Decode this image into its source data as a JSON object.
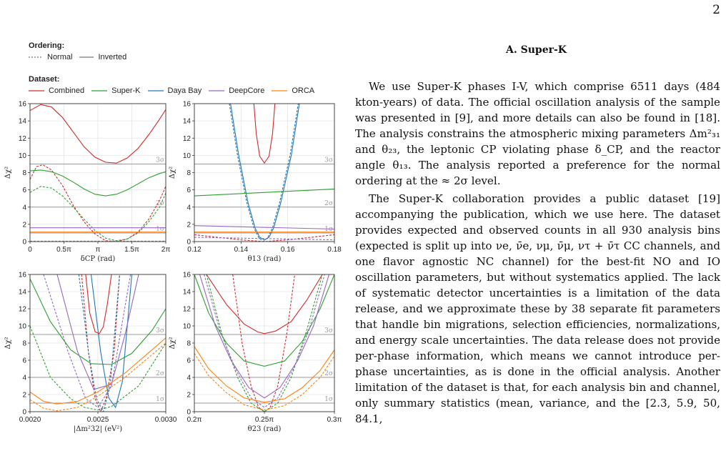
{
  "page_number": "2",
  "legend": {
    "ordering_header": "Ordering:",
    "ordering_items": [
      "Normal",
      "Inverted"
    ],
    "dataset_header": "Dataset:",
    "dataset_items": [
      {
        "name": "Combined",
        "color": "#d62728"
      },
      {
        "name": "Super-K",
        "color": "#2ca02c"
      },
      {
        "name": "Daya Bay",
        "color": "#1f77b4"
      },
      {
        "name": "DeepCore",
        "color": "#9467bd"
      },
      {
        "name": "ORCA",
        "color": "#ff7f0e"
      }
    ]
  },
  "chart_data": [
    {
      "type": "line",
      "xlabel": "δCP (rad)",
      "ylabel": "Δχ²",
      "xticks": [
        "0",
        "0.5π",
        "π",
        "1.5π",
        "2π"
      ],
      "xlim": [
        0,
        6.283
      ],
      "ylim": [
        0,
        16
      ],
      "yticks": [
        "0",
        "2",
        "4",
        "6",
        "8",
        "10",
        "12",
        "14",
        "16"
      ],
      "sigma_lines": [
        {
          "label": "1σ",
          "y": 1
        },
        {
          "label": "2σ",
          "y": 4
        },
        {
          "label": "3σ",
          "y": 9
        }
      ],
      "grid": true,
      "series": [
        {
          "name": "Combined",
          "ordering": "Inverted",
          "x": [
            0,
            0.5,
            1,
            1.5,
            2,
            2.5,
            3,
            3.5,
            4,
            4.5,
            5,
            5.5,
            6,
            6.28
          ],
          "y": [
            15.2,
            15.9,
            15.6,
            14.4,
            12.7,
            11,
            9.8,
            9.2,
            9.1,
            9.7,
            10.8,
            12.4,
            14.2,
            15.3
          ]
        },
        {
          "name": "Combined",
          "ordering": "Normal",
          "x": [
            0,
            0.3,
            0.6,
            1,
            1.5,
            2,
            2.5,
            3,
            3.5,
            4,
            4.5,
            5,
            5.5,
            6,
            6.28
          ],
          "y": [
            7.2,
            8.7,
            8.9,
            8.3,
            6.5,
            4.2,
            2.3,
            0.9,
            0.1,
            0,
            0.3,
            1.1,
            2.6,
            4.8,
            6.4
          ]
        },
        {
          "name": "Super-K",
          "ordering": "Inverted",
          "x": [
            0,
            0.5,
            1,
            1.5,
            2,
            2.5,
            3,
            3.5,
            4,
            4.5,
            5,
            5.5,
            6,
            6.28
          ],
          "y": [
            8.2,
            8.3,
            8.1,
            7.6,
            6.9,
            6.1,
            5.5,
            5.3,
            5.5,
            6.0,
            6.7,
            7.4,
            7.9,
            8.1
          ]
        },
        {
          "name": "Super-K",
          "ordering": "Normal",
          "x": [
            0,
            0.5,
            1,
            1.5,
            2,
            2.5,
            3,
            3.5,
            4,
            4.5,
            5,
            5.5,
            6,
            6.28
          ],
          "y": [
            5.7,
            6.4,
            6.2,
            5.3,
            4.0,
            2.6,
            1.3,
            0.4,
            0.1,
            0.3,
            1.0,
            2.3,
            4.0,
            5.6
          ]
        },
        {
          "name": "DeepCore",
          "ordering": "Inverted",
          "x": [
            0,
            6.28
          ],
          "y": [
            1.6,
            1.6
          ]
        },
        {
          "name": "DeepCore",
          "ordering": "Normal",
          "x": [
            0,
            6.28
          ],
          "y": [
            0.05,
            0.05
          ]
        },
        {
          "name": "ORCA",
          "ordering": "Inverted",
          "x": [
            0,
            6.28
          ],
          "y": [
            1.1,
            1.1
          ]
        },
        {
          "name": "ORCA",
          "ordering": "Normal",
          "x": [
            0,
            6.28
          ],
          "y": [
            0.02,
            0.02
          ]
        }
      ]
    },
    {
      "type": "line",
      "xlabel": "θ13 (rad)",
      "ylabel": "Δχ²",
      "xticks": [
        "0.12",
        "0.14",
        "0.16",
        "0.18"
      ],
      "xlim": [
        0.12,
        0.18
      ],
      "ylim": [
        0,
        16
      ],
      "yticks": [
        "0",
        "2",
        "4",
        "6",
        "8",
        "10",
        "12",
        "14",
        "16"
      ],
      "sigma_lines": [
        {
          "label": "1σ",
          "y": 1
        },
        {
          "label": "2σ",
          "y": 4
        },
        {
          "label": "3σ",
          "y": 9
        }
      ],
      "grid": true,
      "series": [
        {
          "name": "Combined",
          "ordering": "Inverted",
          "x": [
            0.1455,
            0.1465,
            0.148,
            0.15,
            0.152,
            0.1535,
            0.1545
          ],
          "y": [
            16,
            12.5,
            9.9,
            9.1,
            9.9,
            12.5,
            16
          ]
        },
        {
          "name": "Combined",
          "ordering": "Normal",
          "x": [
            0.12,
            0.14,
            0.15,
            0.16,
            0.18
          ],
          "y": [
            0.8,
            0.2,
            0,
            0.2,
            0.8
          ]
        },
        {
          "name": "Daya Bay",
          "ordering": "Inverted",
          "x": [
            0.1355,
            0.139,
            0.143,
            0.146,
            0.148,
            0.15,
            0.152,
            0.154,
            0.157,
            0.1615,
            0.165
          ],
          "y": [
            16,
            10,
            4.5,
            1.6,
            0.5,
            0.2,
            0.5,
            1.6,
            4.5,
            10,
            16
          ]
        },
        {
          "name": "Daya Bay",
          "ordering": "Normal",
          "x": [
            0.135,
            0.1385,
            0.1425,
            0.1455,
            0.1475,
            0.1495,
            0.1515,
            0.1535,
            0.1565,
            0.161,
            0.1645
          ],
          "y": [
            16,
            10,
            4.5,
            1.6,
            0.5,
            0,
            0.5,
            1.6,
            4.5,
            10,
            16
          ]
        },
        {
          "name": "Super-K",
          "ordering": "Inverted",
          "x": [
            0.12,
            0.18
          ],
          "y": [
            5.3,
            6.1
          ]
        },
        {
          "name": "DeepCore",
          "ordering": "Inverted",
          "x": [
            0.12,
            0.18
          ],
          "y": [
            1.85,
            1.45
          ]
        },
        {
          "name": "DeepCore",
          "ordering": "Normal",
          "x": [
            0.12,
            0.18
          ],
          "y": [
            0.5,
            0.2
          ]
        },
        {
          "name": "ORCA",
          "ordering": "Inverted",
          "x": [
            0.12,
            0.18
          ],
          "y": [
            1.1,
            1.1
          ]
        }
      ]
    },
    {
      "type": "line",
      "xlabel": "|Δm²32| (eV²)",
      "ylabel": "Δχ²",
      "xticks": [
        "0.0020",
        "0.0025",
        "0.0030"
      ],
      "xlim": [
        0.002,
        0.003
      ],
      "ylim": [
        0,
        16
      ],
      "yticks": [
        "0",
        "2",
        "4",
        "6",
        "8",
        "10",
        "12",
        "14",
        "16"
      ],
      "sigma_lines": [
        {
          "label": "1σ",
          "y": 1
        },
        {
          "label": "2σ",
          "y": 4
        },
        {
          "label": "3σ",
          "y": 9
        }
      ],
      "grid": true,
      "series": [
        {
          "name": "Combined",
          "ordering": "Inverted",
          "x": [
            0.00241,
            0.00244,
            0.00248,
            0.00251,
            0.00254,
            0.00257,
            0.0026
          ],
          "y": [
            16,
            11.5,
            9.3,
            9.1,
            9.9,
            12.6,
            16
          ]
        },
        {
          "name": "Combined",
          "ordering": "Normal",
          "x": [
            0.00238,
            0.00243,
            0.00248,
            0.00252,
            0.00256,
            0.00262,
            0.00266
          ],
          "y": [
            16,
            7,
            1.5,
            0,
            1.5,
            7,
            16
          ]
        },
        {
          "name": "Super-K",
          "ordering": "Inverted",
          "x": [
            0.002,
            0.00215,
            0.0023,
            0.00245,
            0.0026,
            0.00275,
            0.0029,
            0.003
          ],
          "y": [
            15.5,
            10.5,
            7.2,
            5.6,
            5.5,
            6.8,
            9.5,
            12
          ]
        },
        {
          "name": "Super-K",
          "ordering": "Normal",
          "x": [
            0.002,
            0.00215,
            0.0023,
            0.0024,
            0.0025,
            0.0026,
            0.0028,
            0.003
          ],
          "y": [
            10,
            4,
            1.5,
            0.5,
            0.2,
            0.6,
            3,
            8
          ]
        },
        {
          "name": "Daya Bay",
          "ordering": "Inverted",
          "x": [
            0.00245,
            0.00252,
            0.00258,
            0.00263,
            0.00268,
            0.00275
          ],
          "y": [
            16,
            7,
            1.6,
            0.5,
            3.5,
            16
          ]
        },
        {
          "name": "Daya Bay",
          "ordering": "Normal",
          "x": [
            0.00236,
            0.00243,
            0.00249,
            0.00254,
            0.00259,
            0.00266
          ],
          "y": [
            16,
            7,
            1.5,
            0,
            3,
            16
          ]
        },
        {
          "name": "DeepCore",
          "ordering": "Inverted",
          "x": [
            0.0022,
            0.00235,
            0.00247,
            0.0026,
            0.0027,
            0.0028
          ],
          "y": [
            16,
            7,
            2.6,
            3.2,
            9,
            16
          ]
        },
        {
          "name": "DeepCore",
          "ordering": "Normal",
          "x": [
            0.0021,
            0.00228,
            0.00241,
            0.0025,
            0.0026,
            0.00274
          ],
          "y": [
            16,
            7,
            1.5,
            0.5,
            3,
            16
          ]
        },
        {
          "name": "ORCA",
          "ordering": "Inverted",
          "x": [
            0.002,
            0.0021,
            0.0022,
            0.00235,
            0.0025,
            0.0027,
            0.003
          ],
          "y": [
            2.3,
            1.2,
            0.9,
            1.2,
            2.3,
            4.5,
            8.6
          ]
        },
        {
          "name": "ORCA",
          "ordering": "Normal",
          "x": [
            0.002,
            0.0021,
            0.0022,
            0.00235,
            0.0025,
            0.0027,
            0.003
          ],
          "y": [
            1.4,
            0.4,
            0.1,
            0.5,
            1.8,
            4,
            8
          ]
        }
      ]
    },
    {
      "type": "line",
      "xlabel": "θ23 (rad)",
      "ylabel": "Δχ²",
      "xticks": [
        "0.2π",
        "0.25π",
        "0.3π"
      ],
      "xlim": [
        0.628,
        0.942
      ],
      "ylim": [
        0,
        16
      ],
      "yticks": [
        "0",
        "2",
        "4",
        "6",
        "8",
        "10",
        "12",
        "14",
        "16"
      ],
      "sigma_lines": [
        {
          "label": "1σ",
          "y": 1
        },
        {
          "label": "2σ",
          "y": 4
        },
        {
          "label": "3σ",
          "y": 9
        }
      ],
      "grid": true,
      "series": [
        {
          "name": "Combined",
          "ordering": "Inverted",
          "x": [
            0.655,
            0.7,
            0.74,
            0.77,
            0.785,
            0.81,
            0.845,
            0.88,
            0.915
          ],
          "y": [
            16,
            12.5,
            10.2,
            9.3,
            9.1,
            9.4,
            10.5,
            13,
            16
          ]
        },
        {
          "name": "Combined",
          "ordering": "Normal",
          "x": [
            0.714,
            0.735,
            0.755,
            0.772,
            0.785,
            0.798,
            0.815,
            0.835,
            0.853
          ],
          "y": [
            16,
            8,
            3,
            0.5,
            0,
            0.5,
            3,
            9,
            16
          ]
        },
        {
          "name": "Super-K",
          "ordering": "Inverted",
          "x": [
            0.628,
            0.66,
            0.7,
            0.74,
            0.785,
            0.83,
            0.87,
            0.91,
            0.942
          ],
          "y": [
            16,
            11.5,
            8,
            5.9,
            5.3,
            5.9,
            8.2,
            12,
            16
          ]
        },
        {
          "name": "Super-K",
          "ordering": "Normal",
          "x": [
            0.655,
            0.69,
            0.725,
            0.755,
            0.785,
            0.815,
            0.845,
            0.88,
            0.915
          ],
          "y": [
            16,
            9,
            4,
            1,
            0,
            1,
            4,
            9.5,
            16
          ]
        },
        {
          "name": "DeepCore",
          "ordering": "Inverted",
          "x": [
            0.64,
            0.675,
            0.71,
            0.75,
            0.785,
            0.82,
            0.86,
            0.895,
            0.93
          ],
          "y": [
            16,
            10,
            6,
            2.8,
            1.6,
            2.8,
            6,
            10,
            16
          ]
        },
        {
          "name": "DeepCore",
          "ordering": "Normal",
          "x": [
            0.65,
            0.685,
            0.72,
            0.755,
            0.785,
            0.815,
            0.85,
            0.885,
            0.92
          ],
          "y": [
            16,
            9.5,
            5,
            1.6,
            0.5,
            1.6,
            5,
            9.5,
            16
          ]
        },
        {
          "name": "ORCA",
          "ordering": "Inverted",
          "x": [
            0.628,
            0.66,
            0.7,
            0.74,
            0.785,
            0.83,
            0.87,
            0.91,
            0.942
          ],
          "y": [
            7.6,
            5,
            3,
            1.6,
            1.1,
            1.5,
            2.8,
            4.8,
            7.2
          ]
        },
        {
          "name": "ORCA",
          "ordering": "Normal",
          "x": [
            0.628,
            0.66,
            0.7,
            0.74,
            0.785,
            0.83,
            0.87,
            0.91,
            0.942
          ],
          "y": [
            6.8,
            4.2,
            2.2,
            0.8,
            0.2,
            0.7,
            2.0,
            4.0,
            6.5
          ]
        }
      ]
    }
  ],
  "section": {
    "title": "A.    Super-K",
    "paragraphs": [
      "We use Super-K phases I-V, which comprise 6511 days (484 kton-years) of data. The official oscillation analysis of the sample was presented in [9], and more details can also be found in [18]. The analysis constrains the atmospheric mixing parameters Δm²₃₁ and θ₂₃, the leptonic CP violating phase δ_CP, and the reactor angle θ₁₃. The analysis reported a preference for the normal ordering at the ≈ 2σ level.",
      "The Super-K collaboration provides a public dataset [19] accompanying the publication, which we use here. The dataset provides expected and observed counts in all 930 analysis bins (expected is split up into νe, ν̄e, νμ, ν̄μ, ντ + ν̄τ CC channels, and one flavor agnostic NC channel) for the best-fit NO and IO oscillation parameters, but without systematics applied. The lack of systematic detector uncertainties is a limitation of the data release, and we approximate these by 38 separate fit parameters that handle bin migrations, selection efficiencies, normalizations, and energy scale uncertainties. The data release does not provide per-phase information, which means we cannot introduce per-phase uncertainties, as is done in the official analysis. Another limitation of the dataset is that, for each analysis bin and channel, only summary statistics (mean, variance, and the [2.3, 5.9, 50, 84.1,"
    ]
  }
}
